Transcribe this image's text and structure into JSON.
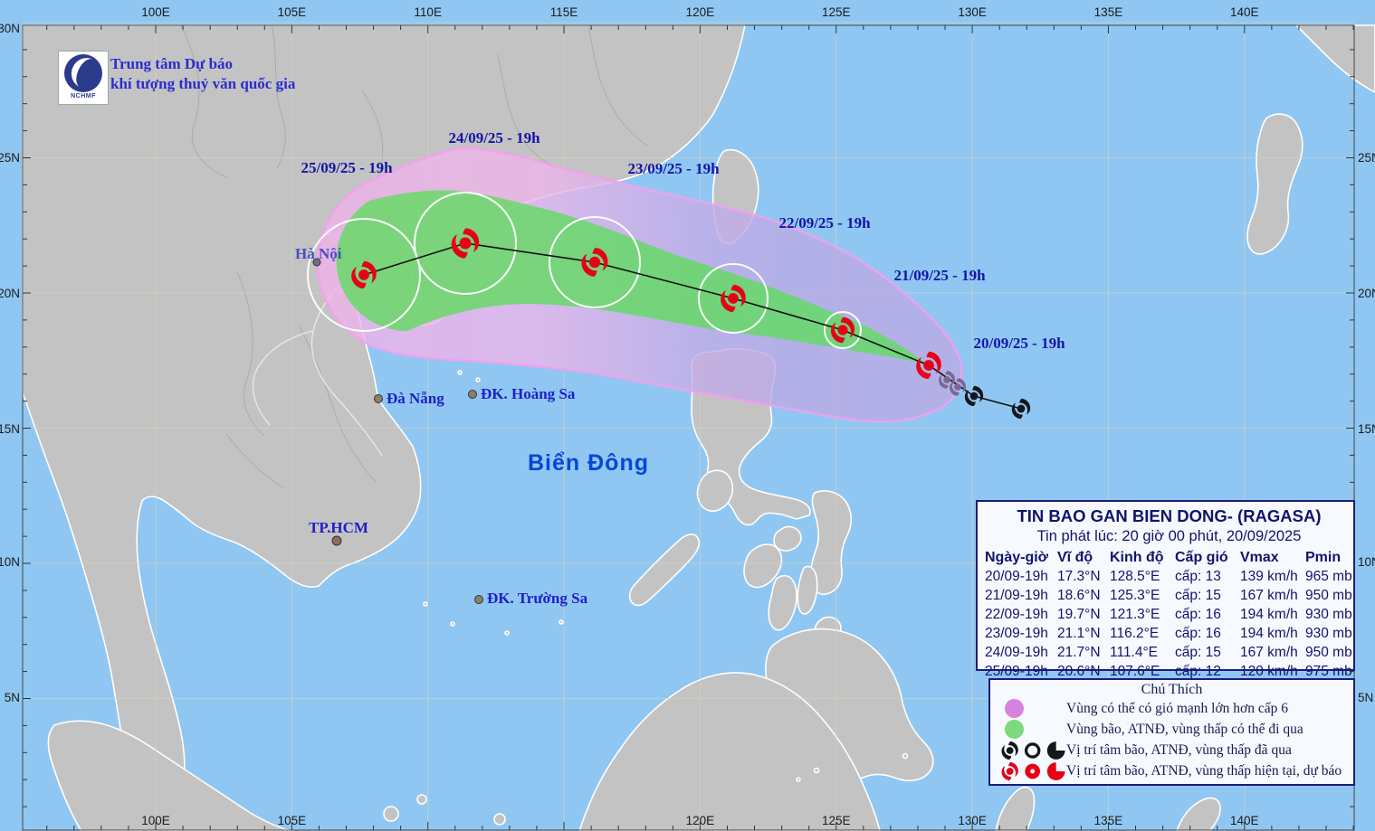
{
  "branding": {
    "org_line1": "Trung tâm Dự báo",
    "org_line2": "khí tượng thuỷ văn quốc gia",
    "logo_text": "NCHMF"
  },
  "map_labels": {
    "hanoi": "Hà Nội",
    "danang": "Đà Nẵng",
    "hcm": "TP.HCM",
    "hoang_sa": "ĐK. Hoàng Sa",
    "truong_sa": "ĐK. Trường Sa",
    "sea_name": "Biển Đông"
  },
  "track_dates": [
    "20/09/25 - 19h",
    "21/09/25 - 19h",
    "22/09/25 - 19h",
    "23/09/25 - 19h",
    "24/09/25 - 19h",
    "25/09/25 - 19h"
  ],
  "axes": {
    "top": [
      "100E",
      "105E",
      "110E",
      "115E",
      "120E",
      "125E",
      "130E",
      "135E",
      "140E"
    ],
    "bottom": [
      "100E",
      "105E",
      "120E",
      "125E",
      "130E",
      "135E",
      "140E"
    ],
    "left": [
      "30N",
      "25N",
      "20N",
      "15N",
      "10N",
      "5N"
    ],
    "right": [
      "25N",
      "20N",
      "15N",
      "10N",
      "5N"
    ]
  },
  "storm_table": {
    "title": "TIN BAO GAN BIEN DONG- (RAGASA)",
    "issued": "Tin phát lúc: 20 giờ 00 phút, 20/09/2025",
    "columns": [
      "Ngày-giờ",
      "Vĩ độ",
      "Kinh độ",
      "Cấp gió",
      "Vmax",
      "Pmin"
    ],
    "rows": [
      [
        "20/09-19h",
        "17.3°N",
        "128.5°E",
        "cấp: 13",
        "139 km/h",
        "965 mb"
      ],
      [
        "21/09-19h",
        "18.6°N",
        "125.3°E",
        "cấp: 15",
        "167 km/h",
        "950 mb"
      ],
      [
        "22/09-19h",
        "19.7°N",
        "121.3°E",
        "cấp: 16",
        "194 km/h",
        "930 mb"
      ],
      [
        "23/09-19h",
        "21.1°N",
        "116.2°E",
        "cấp: 16",
        "194 km/h",
        "930 mb"
      ],
      [
        "24/09-19h",
        "21.7°N",
        "111.4°E",
        "cấp: 15",
        "167 km/h",
        "950 mb"
      ],
      [
        "25/09-19h",
        "20.6°N",
        "107.6°E",
        "cấp: 12",
        "120 km/h",
        "975 mb"
      ]
    ]
  },
  "legend": {
    "title": "Chú Thích",
    "items": [
      {
        "icon": "pink-area-swatch",
        "label": "Vùng có thể có gió mạnh lớn hơn cấp 6"
      },
      {
        "icon": "green-area-swatch",
        "label": "Vùng bão, ATNĐ, vùng thấp có thể đi qua"
      },
      {
        "icon": "black-symbols",
        "label": "Vị trí tâm bão, ATNĐ, vùng thấp đã qua"
      },
      {
        "icon": "red-symbols",
        "label": "Vị trí tâm bão, ATNĐ, vùng thấp hiện tại, dự báo"
      }
    ]
  },
  "colors": {
    "sea": "#8FC7F2",
    "land": "#C3C3C3",
    "coast": "#FFFFFF",
    "wind_area_pink": "#EFB4EA",
    "wind_area_lavender": "#BCAAE6",
    "track_cone_green": "#74D974",
    "cone_outline_pink": "#F4A0EE",
    "current_symbol_red": "#E80017",
    "past_symbol_black": "#15151C",
    "recent_symbol_gray": "#7A6890",
    "date_label_navy": "#1414A8",
    "city_label_blue": "#2020C8"
  }
}
